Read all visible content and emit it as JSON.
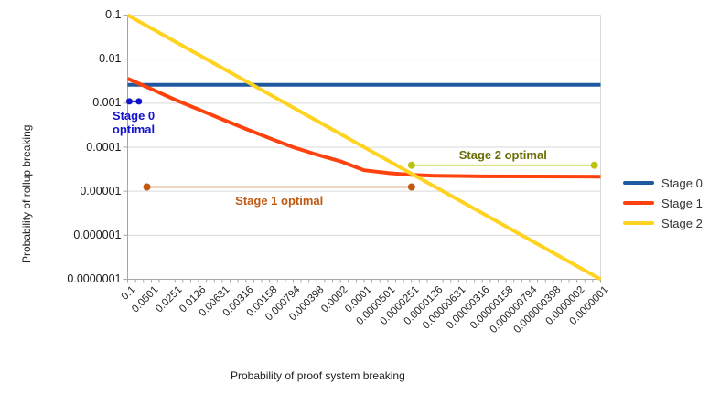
{
  "chart_data": {
    "type": "line",
    "title": "",
    "xlabel": "Probability of proof system breaking",
    "ylabel": "Probability of rollup breaking",
    "x_scale": "log",
    "y_scale": "log",
    "x_range": [
      0.1,
      1e-07
    ],
    "y_range": [
      0.1,
      1e-07
    ],
    "grid": "horizontal",
    "legend_position": "right",
    "x_tick_labels": [
      "0.1",
      "0.0501",
      "0.0251",
      "0.0126",
      "0.00631",
      "0.00316",
      "0.00158",
      "0.000794",
      "0.000398",
      "0.0002",
      "0.0001",
      "0.0000501",
      "0.0000251",
      "0.0000126",
      "0.00000631",
      "0.00000316",
      "0.00000158",
      "0.000000794",
      "0.000000398",
      "0.0000002",
      "0.0000001"
    ],
    "y_tick_labels": [
      "0.1",
      "0.01",
      "0.001",
      "0.0001",
      "0.00001",
      "0.000001",
      "0.0000001"
    ],
    "series": [
      {
        "name": "Stage 0",
        "color": "#1f5aa0",
        "x": [
          0.1,
          1e-07
        ],
        "y": [
          0.0026,
          0.0026
        ]
      },
      {
        "name": "Stage 1",
        "color": "#ff420e",
        "x": [
          0.1,
          0.0501,
          0.0251,
          0.0126,
          0.00631,
          0.00316,
          0.00158,
          0.000794,
          0.000398,
          0.0002,
          0.0001,
          5.01e-05,
          2.51e-05,
          1.26e-05,
          3.16e-06,
          1e-07
        ],
        "y": [
          0.0036,
          0.0021,
          0.0012,
          0.00072,
          0.00043,
          0.00026,
          0.00016,
          0.0001,
          6.8e-05,
          4.8e-05,
          3e-05,
          2.6e-05,
          2.35e-05,
          2.25e-05,
          2.18e-05,
          2.15e-05
        ]
      },
      {
        "name": "Stage 2",
        "color": "#ffd320",
        "x": [
          0.1,
          1e-07
        ],
        "y": [
          0.1,
          1e-07
        ]
      }
    ],
    "annotations": [
      {
        "label": "Stage 0 optimal",
        "label_lines": [
          "Stage 0",
          "optimal"
        ],
        "text_color": "#1212cd",
        "line_color": "#1212cd",
        "y": 0.0011,
        "x_start": 0.095,
        "x_end": 0.072,
        "label_position": "below-left"
      },
      {
        "label": "Stage 1 optimal",
        "label_lines": [
          "Stage 1 optimal"
        ],
        "text_color": "#c05a12",
        "line_color": "#c05a12",
        "y": 1.25e-05,
        "x_start": 0.057,
        "x_end": 2.5e-05,
        "label_position": "below-center"
      },
      {
        "label": "Stage 2 optimal",
        "label_lines": [
          "Stage 2 optimal"
        ],
        "text_color": "#6b6e04",
        "line_color": "#b9c40e",
        "y": 3.9e-05,
        "x_start": 2.5e-05,
        "x_end": 1.2e-07,
        "label_position": "above-center"
      }
    ],
    "colors": {
      "gridline": "#d9d9d9",
      "axis": "#a6a6a6",
      "background": "#ffffff"
    }
  }
}
